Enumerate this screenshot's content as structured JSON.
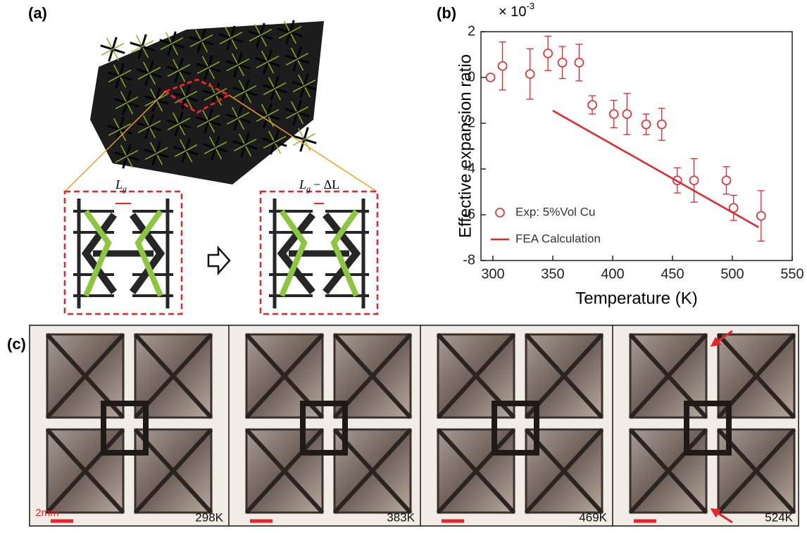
{
  "panels": {
    "a": {
      "label": "(a)",
      "gap_symbol": "L",
      "gap_subscript": "g",
      "gap_change": "− ΔL"
    },
    "c": {
      "label": "(c)",
      "scale_label": "2mm",
      "temperatures": [
        "298K",
        "383K",
        "469K",
        "524K"
      ]
    }
  },
  "chart_data": {
    "type": "scatter",
    "panel_label": "(b)",
    "x_label": "Temperature (K)",
    "y_label": "Effective expansion ratio",
    "y_multiplier": "× 10",
    "y_exponent": "-3",
    "xlim": [
      290,
      550
    ],
    "xticks": [
      300,
      350,
      400,
      450,
      500,
      550
    ],
    "ylim": [
      -8,
      2
    ],
    "yticks": [
      -8,
      -6,
      -4,
      -2,
      0,
      2
    ],
    "legend": "lower left",
    "series": [
      {
        "name": "Exp: 5%Vol Cu",
        "type": "scatter",
        "color": "#e8242b",
        "x": [
          298,
          308,
          331,
          346,
          358,
          372,
          383,
          401,
          412,
          428,
          441,
          454,
          468,
          495,
          501,
          524
        ],
        "values": [
          0,
          0.5,
          0.15,
          1.05,
          0.65,
          0.65,
          -1.2,
          -1.6,
          -1.6,
          -2.05,
          -2.05,
          -4.5,
          -4.5,
          -4.5,
          -5.7,
          -6.05
        ],
        "yerr": [
          null,
          1.05,
          1.1,
          0.75,
          0.7,
          0.8,
          0.4,
          0.6,
          0.9,
          0.45,
          0.7,
          0.55,
          0.95,
          0.6,
          0.55,
          1.1
        ],
        "xerr": [
          null,
          3,
          3,
          3,
          3,
          3,
          3,
          3,
          3,
          3,
          3,
          3,
          3,
          3,
          3,
          3
        ]
      },
      {
        "name": "FEA Calculation",
        "type": "line",
        "color": "#e8242b",
        "x": [
          350,
          522
        ],
        "values": [
          -1.45,
          -6.55
        ]
      }
    ]
  }
}
